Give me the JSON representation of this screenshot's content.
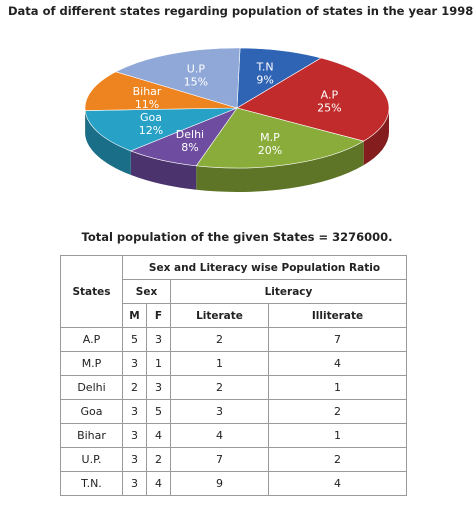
{
  "title": "Data of different states regarding population of states in the year 1998",
  "total_text": "Total population of the given States = 3276000.",
  "chart_data": {
    "type": "pie",
    "title": "Data of different states regarding population of states in the year 1998",
    "slices": [
      {
        "label": "T.N",
        "pct_text": "9%",
        "value": 9,
        "color": "#2f63b4"
      },
      {
        "label": "A.P",
        "pct_text": "25%",
        "value": 25,
        "color": "#c22b2b"
      },
      {
        "label": "M.P",
        "pct_text": "20%",
        "value": 20,
        "color": "#8aac3a"
      },
      {
        "label": "Delhi",
        "pct_text": "8%",
        "value": 8,
        "color": "#6e4ca0"
      },
      {
        "label": "Goa",
        "pct_text": "12%",
        "value": 12,
        "color": "#27a2c6"
      },
      {
        "label": "Bihar",
        "pct_text": "11%",
        "value": 11,
        "color": "#ee8420"
      },
      {
        "label": "U.P",
        "pct_text": "15%",
        "value": 15,
        "color": "#8fa8d8"
      }
    ]
  },
  "table": {
    "group_header": "Sex and Literacy wise Population Ratio",
    "states_header": "States",
    "sex_header": "Sex",
    "literacy_header": "Literacy",
    "m_header": "M",
    "f_header": "F",
    "literate_header": "Literate",
    "illiterate_header": "Illiterate",
    "rows": [
      {
        "state": "A.P",
        "m": "5",
        "f": "3",
        "literate": "2",
        "illiterate": "7"
      },
      {
        "state": "M.P",
        "m": "3",
        "f": "1",
        "literate": "1",
        "illiterate": "4"
      },
      {
        "state": "Delhi",
        "m": "2",
        "f": "3",
        "literate": "2",
        "illiterate": "1"
      },
      {
        "state": "Goa",
        "m": "3",
        "f": "5",
        "literate": "3",
        "illiterate": "2"
      },
      {
        "state": "Bihar",
        "m": "3",
        "f": "4",
        "literate": "4",
        "illiterate": "1"
      },
      {
        "state": "U.P.",
        "m": "3",
        "f": "2",
        "literate": "7",
        "illiterate": "2"
      },
      {
        "state": "T.N.",
        "m": "3",
        "f": "4",
        "literate": "9",
        "illiterate": "4"
      }
    ]
  }
}
